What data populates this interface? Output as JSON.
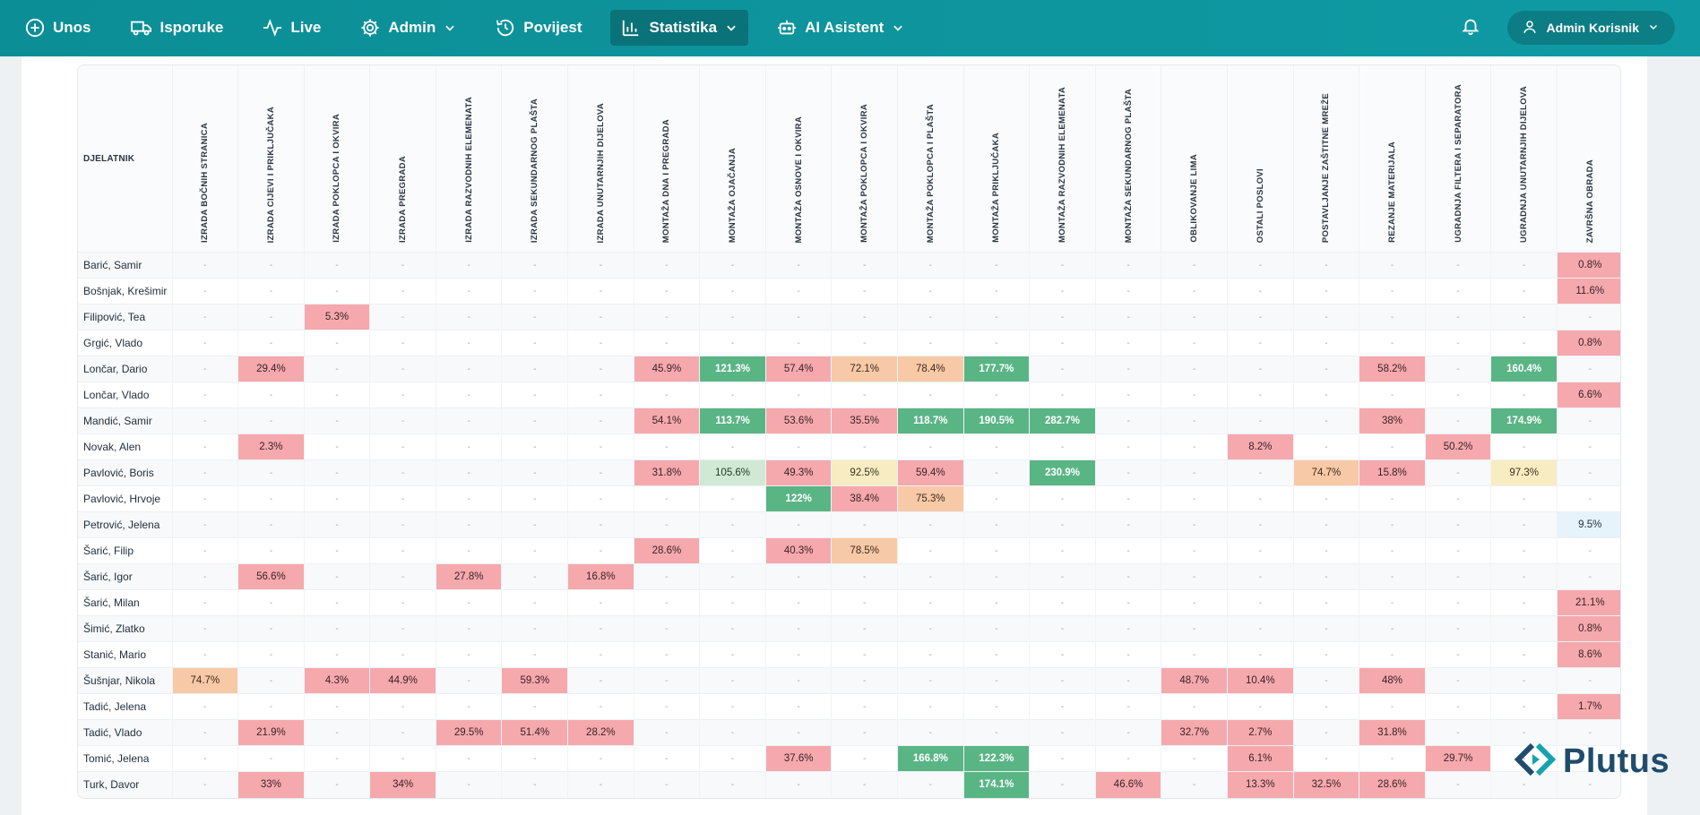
{
  "nav": {
    "items": [
      {
        "label": "Unos"
      },
      {
        "label": "Isporuke"
      },
      {
        "label": "Live"
      },
      {
        "label": "Admin"
      },
      {
        "label": "Povijest"
      },
      {
        "label": "Statistika"
      },
      {
        "label": "AI Asistent"
      }
    ],
    "user": "Admin Korisnik"
  },
  "table": {
    "name_header": "DJELATNIK",
    "columns": [
      "IZRADA BOČNIH STRANICA",
      "IZRADA CIJEVI I PRIKLJUČAKA",
      "IZRADA POKLOPCA I OKVIRA",
      "IZRADA PREGRADA",
      "IZRADA RAZVODNIH ELEMENATA",
      "IZRADA SEKUNDARNOG PLAŠTA",
      "IZRADA UNUTARNJIH DIJELOVA",
      "MONTAŽA DNA I PREGRADA",
      "MONTAŽA OJAČANJA",
      "MONTAŽA OSNOVE I OKVIRA",
      "MONTAŽA POKLOPCA I OKVIRA",
      "MONTAŽA POKLOPCA I PLAŠTA",
      "MONTAŽA PRIKLJUČAKA",
      "MONTAŽA RAZVODNIH ELEMENATA",
      "MONTAŽA SEKUNDARNOG PLAŠTA",
      "OBLIKOVANJE LIMA",
      "OSTALI POSLOVI",
      "POSTAVLJANJE ZAŠTITNE MREŽE",
      "REZANJE MATERIJALA",
      "UGRADNJA FILTERA I SEPARATORA",
      "UGRADNJA UNUTARNJIH DIJELOVA",
      "ZAVRŠNA OBRADA"
    ],
    "empty": "-",
    "rows": [
      {
        "name": "Barić, Samir",
        "cells": [
          "",
          "",
          "",
          "",
          "",
          "",
          "",
          "",
          "",
          "",
          "",
          "",
          "",
          "",
          "",
          "",
          "",
          "",
          "",
          "",
          "",
          "0.8%"
        ]
      },
      {
        "name": "Bošnjak, Krešimir",
        "cells": [
          "",
          "",
          "",
          "",
          "",
          "",
          "",
          "",
          "",
          "",
          "",
          "",
          "",
          "",
          "",
          "",
          "",
          "",
          "",
          "",
          "",
          "11.6%"
        ]
      },
      {
        "name": "Filipović, Tea",
        "cells": [
          "",
          "",
          "5.3%",
          "",
          "",
          "",
          "",
          "",
          "",
          "",
          "",
          "",
          "",
          "",
          "",
          "",
          "",
          "",
          "",
          "",
          "",
          ""
        ]
      },
      {
        "name": "Grgić, Vlado",
        "cells": [
          "",
          "",
          "",
          "",
          "",
          "",
          "",
          "",
          "",
          "",
          "",
          "",
          "",
          "",
          "",
          "",
          "",
          "",
          "",
          "",
          "",
          "0.8%"
        ]
      },
      {
        "name": "Lončar, Dario",
        "cells": [
          "",
          "29.4%",
          "",
          "",
          "",
          "",
          "",
          "45.9%",
          "121.3%",
          "57.4%",
          "72.1%",
          "78.4%",
          "177.7%",
          "",
          "",
          "",
          "",
          "",
          "58.2%",
          "",
          "160.4%",
          ""
        ]
      },
      {
        "name": "Lončar, Vlado",
        "cells": [
          "",
          "",
          "",
          "",
          "",
          "",
          "",
          "",
          "",
          "",
          "",
          "",
          "",
          "",
          "",
          "",
          "",
          "",
          "",
          "",
          "",
          "6.6%"
        ]
      },
      {
        "name": "Mandić, Samir",
        "cells": [
          "",
          "",
          "",
          "",
          "",
          "",
          "",
          "54.1%",
          "113.7%",
          "53.6%",
          "35.5%",
          "118.7%",
          "190.5%",
          "282.7%",
          "",
          "",
          "",
          "",
          "38%",
          "",
          "174.9%",
          ""
        ]
      },
      {
        "name": "Novak, Alen",
        "cells": [
          "",
          "2.3%",
          "",
          "",
          "",
          "",
          "",
          "",
          "",
          "",
          "",
          "",
          "",
          "",
          "",
          "",
          "8.2%",
          "",
          "",
          "50.2%",
          "",
          ""
        ]
      },
      {
        "name": "Pavlović, Boris",
        "cells": [
          "",
          "",
          "",
          "",
          "",
          "",
          "",
          "31.8%",
          "105.6%",
          "49.3%",
          "92.5%",
          "59.4%",
          "",
          "230.9%",
          "",
          "",
          "",
          "74.7%",
          "15.8%",
          "",
          "97.3%",
          ""
        ]
      },
      {
        "name": "Pavlović, Hrvoje",
        "cells": [
          "",
          "",
          "",
          "",
          "",
          "",
          "",
          "",
          "",
          "122%",
          "38.4%",
          "75.3%",
          "",
          "",
          "",
          "",
          "",
          "",
          "",
          "",
          "",
          ""
        ]
      },
      {
        "name": "Petrović, Jelena",
        "cells": [
          "",
          "",
          "",
          "",
          "",
          "",
          "",
          "",
          "",
          "",
          "",
          "",
          "",
          "",
          "",
          "",
          "",
          "",
          "",
          "",
          "",
          "9.5%"
        ]
      },
      {
        "name": "Šarić, Filip",
        "cells": [
          "",
          "",
          "",
          "",
          "",
          "",
          "",
          "28.6%",
          "",
          "40.3%",
          "78.5%",
          "",
          "",
          "",
          "",
          "",
          "",
          "",
          "",
          "",
          "",
          ""
        ]
      },
      {
        "name": "Šarić, Igor",
        "cells": [
          "",
          "56.6%",
          "",
          "",
          "27.8%",
          "",
          "16.8%",
          "",
          "",
          "",
          "",
          "",
          "",
          "",
          "",
          "",
          "",
          "",
          "",
          "",
          "",
          ""
        ]
      },
      {
        "name": "Šarić, Milan",
        "cells": [
          "",
          "",
          "",
          "",
          "",
          "",
          "",
          "",
          "",
          "",
          "",
          "",
          "",
          "",
          "",
          "",
          "",
          "",
          "",
          "",
          "",
          "21.1%"
        ]
      },
      {
        "name": "Šimić, Zlatko",
        "cells": [
          "",
          "",
          "",
          "",
          "",
          "",
          "",
          "",
          "",
          "",
          "",
          "",
          "",
          "",
          "",
          "",
          "",
          "",
          "",
          "",
          "",
          "0.8%"
        ]
      },
      {
        "name": "Stanić, Mario",
        "cells": [
          "",
          "",
          "",
          "",
          "",
          "",
          "",
          "",
          "",
          "",
          "",
          "",
          "",
          "",
          "",
          "",
          "",
          "",
          "",
          "",
          "",
          "8.6%"
        ]
      },
      {
        "name": "Šušnjar, Nikola",
        "cells": [
          "74.7%",
          "",
          "4.3%",
          "44.9%",
          "",
          "59.3%",
          "",
          "",
          "",
          "",
          "",
          "",
          "",
          "",
          "",
          "48.7%",
          "10.4%",
          "",
          "48%",
          "",
          "",
          ""
        ]
      },
      {
        "name": "Tadić, Jelena",
        "cells": [
          "",
          "",
          "",
          "",
          "",
          "",
          "",
          "",
          "",
          "",
          "",
          "",
          "",
          "",
          "",
          "",
          "",
          "",
          "",
          "",
          "",
          "1.7%"
        ]
      },
      {
        "name": "Tadić, Vlado",
        "cells": [
          "",
          "21.9%",
          "",
          "",
          "29.5%",
          "51.4%",
          "28.2%",
          "",
          "",
          "",
          "",
          "",
          "",
          "",
          "",
          "32.7%",
          "2.7%",
          "",
          "31.8%",
          "",
          "",
          ""
        ]
      },
      {
        "name": "Tomić, Jelena",
        "cells": [
          "",
          "",
          "",
          "",
          "",
          "",
          "",
          "",
          "",
          "37.6%",
          "",
          "166.8%",
          "122.3%",
          "",
          "",
          "",
          "6.1%",
          "",
          "",
          "29.7%",
          "",
          ""
        ]
      },
      {
        "name": "Turk, Davor",
        "cells": [
          "",
          "33%",
          "",
          "34%",
          "",
          "",
          "",
          "",
          "",
          "",
          "",
          "",
          "174.1%",
          "",
          "46.6%",
          "",
          "13.3%",
          "32.5%",
          "28.6%",
          "",
          "",
          ""
        ]
      }
    ]
  },
  "colors": {
    "navbar": "#0f9aa3",
    "low": "#f5a9ad",
    "mid": "#f8c9a6",
    "midhi": "#f8ecc2",
    "good": "#cfe9d4",
    "high": "#5ab585",
    "vlow": "#e7f3fb"
  },
  "logo": {
    "text": "Plutus"
  }
}
